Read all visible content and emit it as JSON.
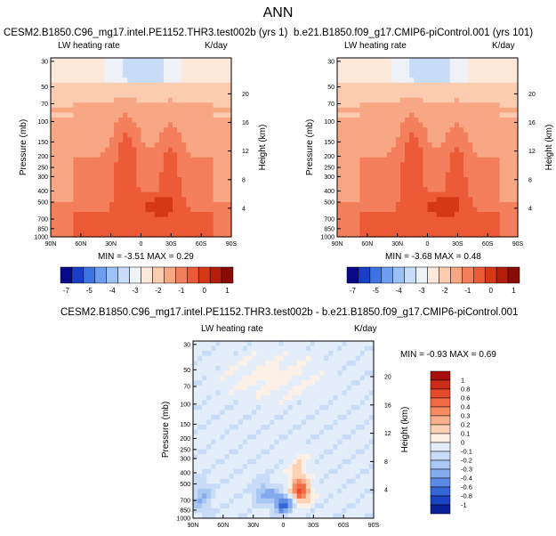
{
  "title": "ANN",
  "panels": [
    {
      "id": "p1",
      "title": "CESM2.B1850.C96_mg17.intel.PE1152.THR3.test002b (yrs 1)",
      "left_label": "LW heating rate",
      "right_label": "K/day",
      "stats": "MIN =  -3.51   MAX =   0.29"
    },
    {
      "id": "p2",
      "title": "b.e21.B1850.f09_g17.CMIP6-piControl.001 (yrs 101)",
      "left_label": "LW heating rate",
      "right_label": "K/day",
      "stats": "MIN =  -3.68   MAX =   0.48"
    },
    {
      "id": "p3",
      "title": "CESM2.B1850.C96_mg17.intel.PE1152.THR3.test002b - b.e21.B1850.f09_g17.CMIP6-piControl.001",
      "left_label": "LW heating rate",
      "right_label": "K/day",
      "stats": "MIN =  -0.93   MAX =   0.69"
    }
  ],
  "chart_data": [
    {
      "type": "heatmap",
      "panel": "p1",
      "ylabel": "Pressure (mb)",
      "y2label": "Height (km)",
      "x_ticks": [
        "90N",
        "60N",
        "30N",
        "0",
        "30S",
        "60S",
        "90S"
      ],
      "pressure_ticks": [
        "30",
        "50",
        "70",
        "100",
        "150",
        "200",
        "250",
        "300",
        "400",
        "500",
        "700",
        "850",
        "1000"
      ],
      "height_ticks": [
        "20",
        "16",
        "12",
        "8",
        "4"
      ],
      "min": -3.51,
      "max": 0.29
    },
    {
      "type": "heatmap",
      "panel": "p2",
      "ylabel": "Pressure (mb)",
      "y2label": "Height (km)",
      "x_ticks": [
        "90N",
        "60N",
        "30N",
        "0",
        "30S",
        "60S",
        "90S"
      ],
      "pressure_ticks": [
        "30",
        "50",
        "70",
        "100",
        "150",
        "200",
        "250",
        "300",
        "400",
        "500",
        "700",
        "850",
        "1000"
      ],
      "height_ticks": [
        "20",
        "16",
        "12",
        "8",
        "4"
      ],
      "min": -3.68,
      "max": 0.48
    },
    {
      "type": "heatmap",
      "panel": "p3",
      "ylabel": "Pressure (mb)",
      "y2label": "Height (km)",
      "x_ticks": [
        "90N",
        "60N",
        "30N",
        "0",
        "30S",
        "60S",
        "90S"
      ],
      "pressure_ticks": [
        "30",
        "50",
        "70",
        "100",
        "150",
        "200",
        "250",
        "300",
        "400",
        "500",
        "700",
        "850",
        "1000"
      ],
      "height_ticks": [
        "20",
        "16",
        "12",
        "8",
        "4"
      ],
      "min": -0.93,
      "max": 0.69
    }
  ],
  "colorbar_abs": {
    "labels": [
      "-7",
      "-5",
      "-4",
      "-3",
      "-2",
      "-1",
      "0",
      "1"
    ],
    "colors": [
      "#08088a",
      "#1a3fc6",
      "#3d72e3",
      "#6d9ef0",
      "#9cc1f5",
      "#c7dcf7",
      "#eef2f6",
      "#fde9dc",
      "#fbccb0",
      "#f8a785",
      "#f47f5c",
      "#ec5a37",
      "#d43817",
      "#b51d0a",
      "#8a0a06"
    ]
  },
  "colorbar_diff": {
    "labels": [
      "1",
      "0.8",
      "0.6",
      "0.4",
      "0.3",
      "0.2",
      "0.1",
      "0",
      "-0.1",
      "-0.2",
      "-0.3",
      "-0.4",
      "-0.6",
      "-0.8",
      "-1"
    ],
    "colors": [
      "#a50f0c",
      "#cc2c1a",
      "#e64a2d",
      "#f26a44",
      "#f78c63",
      "#fab08c",
      "#fcd2b7",
      "#fdf0e6",
      "#e4eefb",
      "#c9dcf7",
      "#a9c7f3",
      "#84abed",
      "#5b8be4",
      "#3466d6",
      "#1a43c2",
      "#0a1e96"
    ]
  }
}
